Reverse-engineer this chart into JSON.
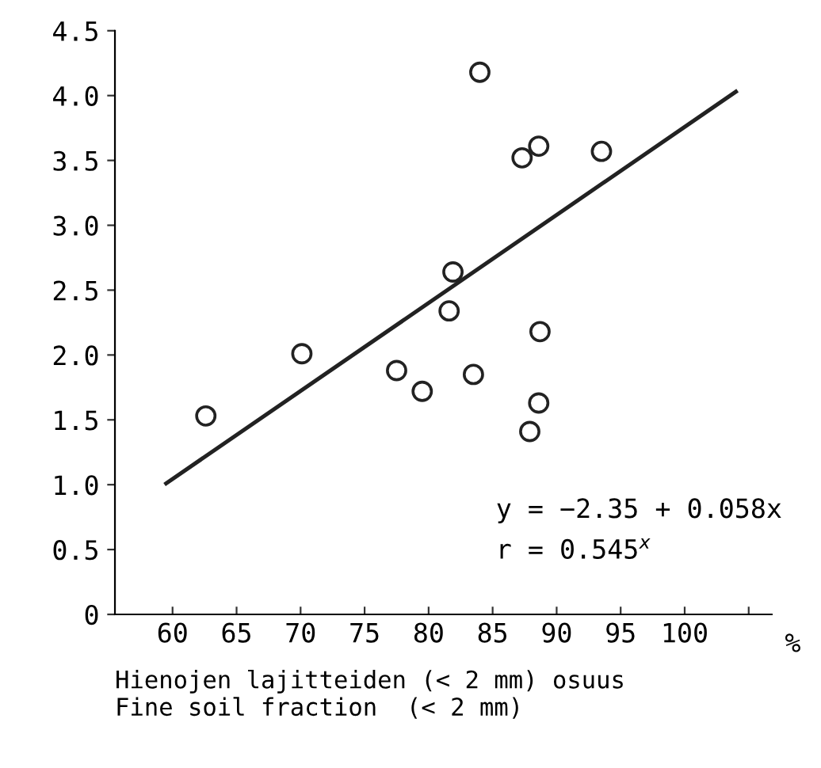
{
  "chart_data": {
    "type": "scatter",
    "xlabel": "Hienojen lajitteiden (< 2 mm) osuus\nFine soil fraction  (< 2 mm)",
    "series": [
      {
        "color": "#222222",
        "marker": "circle",
        "x": [
          62.6,
          70.1,
          77.5,
          79.5,
          81.9,
          81.6,
          83.5,
          84.0,
          87.3,
          88.6,
          93.5,
          88.7,
          88.6,
          87.9
        ],
        "values": [
          1.53,
          2.01,
          1.88,
          1.72,
          2.64,
          2.34,
          1.85,
          4.18,
          3.52,
          3.61,
          3.57,
          2.18,
          1.63,
          1.41
        ]
      },
      {
        "type": "line",
        "color": "#222222",
        "x": [
          59.5,
          104.0
        ],
        "values": [
          1.01,
          4.03
        ]
      }
    ],
    "annotations": [
      "y = −2.35 + 0.058x",
      "r = 0.545$^{x}$",
      "%"
    ],
    "xlim": [
      55.5,
      106.8
    ],
    "xticks": [
      60,
      65,
      70,
      75,
      80,
      85,
      90,
      95,
      100,
      {
        "value": 105,
        "label": null
      }
    ],
    "ylim": [
      0,
      4.5
    ],
    "yticks": [
      0,
      0.5,
      {
        "value": 1,
        "label": "1.0"
      },
      1.5,
      {
        "value": 2,
        "label": "2.0"
      },
      2.5,
      {
        "value": 3,
        "label": "3.0"
      },
      3.5,
      {
        "value": 4,
        "label": "4.0"
      },
      4.5
    ],
    "grid": false,
    "legend": false
  }
}
